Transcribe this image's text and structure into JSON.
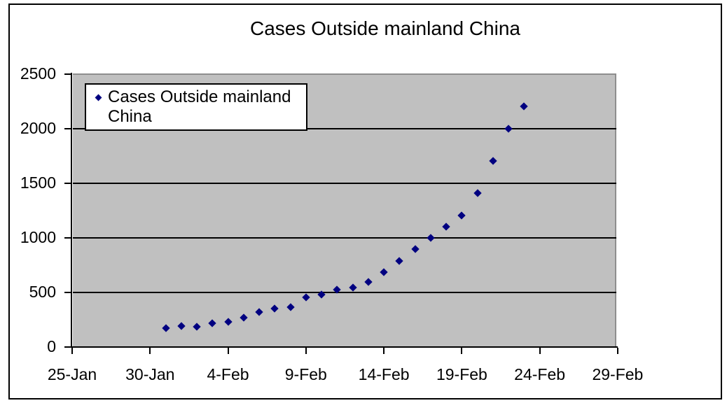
{
  "window": {
    "background": "#ffffff",
    "border_color": "#000000"
  },
  "chart_data": {
    "type": "scatter",
    "title": "Cases Outside mainland China",
    "xlabel": "",
    "ylabel": "",
    "grid": "horizontal",
    "plot_background": "#c0c0c0",
    "gridline_color": "#000000",
    "legend_position": "top-left-inside",
    "x_tick_labels": [
      "25-Jan",
      "30-Jan",
      "4-Feb",
      "9-Feb",
      "14-Feb",
      "19-Feb",
      "24-Feb",
      "29-Feb"
    ],
    "x_tick_days_from_25jan": [
      0,
      5,
      10,
      15,
      20,
      25,
      30,
      35
    ],
    "y_tick_labels": [
      "0",
      "500",
      "1000",
      "1500",
      "2000",
      "2500"
    ],
    "y_range": [
      0,
      2500
    ],
    "x_range_days_from_25jan": [
      0,
      35
    ],
    "series": [
      {
        "name": "Cases Outside mainland China",
        "marker": "diamond",
        "color": "#000080",
        "points": [
          {
            "date": "31-Jan",
            "days_from_25jan": 6,
            "value": 170
          },
          {
            "date": "1-Feb",
            "days_from_25jan": 7,
            "value": 190
          },
          {
            "date": "2-Feb",
            "days_from_25jan": 8,
            "value": 185
          },
          {
            "date": "3-Feb",
            "days_from_25jan": 9,
            "value": 215
          },
          {
            "date": "4-Feb",
            "days_from_25jan": 10,
            "value": 230
          },
          {
            "date": "5-Feb",
            "days_from_25jan": 11,
            "value": 265
          },
          {
            "date": "6-Feb",
            "days_from_25jan": 12,
            "value": 320
          },
          {
            "date": "7-Feb",
            "days_from_25jan": 13,
            "value": 350
          },
          {
            "date": "8-Feb",
            "days_from_25jan": 14,
            "value": 365
          },
          {
            "date": "9-Feb",
            "days_from_25jan": 15,
            "value": 455
          },
          {
            "date": "10-Feb",
            "days_from_25jan": 16,
            "value": 480
          },
          {
            "date": "11-Feb",
            "days_from_25jan": 17,
            "value": 520
          },
          {
            "date": "12-Feb",
            "days_from_25jan": 18,
            "value": 540
          },
          {
            "date": "13-Feb",
            "days_from_25jan": 19,
            "value": 595
          },
          {
            "date": "14-Feb",
            "days_from_25jan": 20,
            "value": 685
          },
          {
            "date": "15-Feb",
            "days_from_25jan": 21,
            "value": 785
          },
          {
            "date": "16-Feb",
            "days_from_25jan": 22,
            "value": 895
          },
          {
            "date": "17-Feb",
            "days_from_25jan": 23,
            "value": 995
          },
          {
            "date": "18-Feb",
            "days_from_25jan": 24,
            "value": 1100
          },
          {
            "date": "19-Feb",
            "days_from_25jan": 25,
            "value": 1200
          },
          {
            "date": "20-Feb",
            "days_from_25jan": 26,
            "value": 1405
          },
          {
            "date": "21-Feb",
            "days_from_25jan": 27,
            "value": 1705
          },
          {
            "date": "22-Feb",
            "days_from_25jan": 28,
            "value": 2000
          },
          {
            "date": "23-Feb",
            "days_from_25jan": 29,
            "value": 2205
          }
        ]
      }
    ]
  }
}
